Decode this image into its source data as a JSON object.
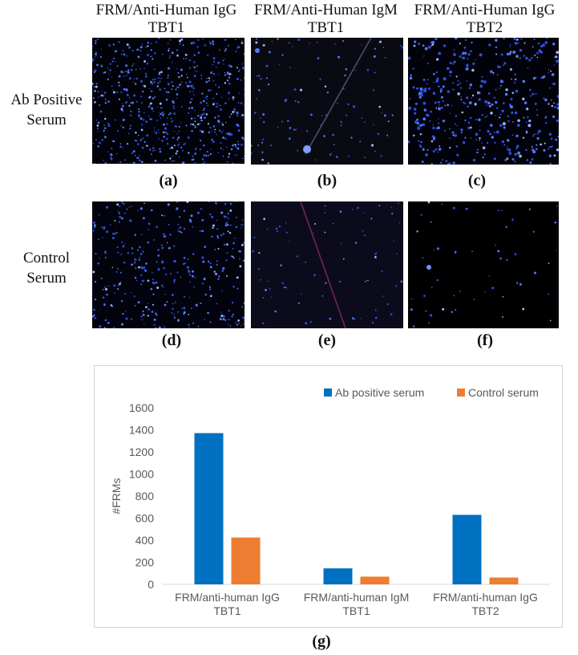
{
  "columns": [
    {
      "line1": "FRM/Anti-Human IgG",
      "line2": "TBT1"
    },
    {
      "line1": "FRM/Anti-Human IgM",
      "line2": "TBT1"
    },
    {
      "line1": "FRM/Anti-Human IgG",
      "line2": "TBT2"
    }
  ],
  "rows": [
    {
      "line1": "Ab Positive",
      "line2": "Serum"
    },
    {
      "line1": "Control",
      "line2": "Serum"
    }
  ],
  "panel_captions": [
    "(a)",
    "(b)",
    "(c)",
    "(d)",
    "(e)",
    "(f)"
  ],
  "chart_caption": "(g)",
  "colors": {
    "ab_positive": "#0070C0",
    "control": "#ED7D31",
    "dot": "#3a66ff"
  },
  "chart_data": {
    "type": "bar",
    "categories": [
      [
        "FRM/anti-human IgG",
        "TBT1"
      ],
      [
        "FRM/anti-human IgM",
        "TBT1"
      ],
      [
        "FRM/anti-human IgG",
        "TBT2"
      ]
    ],
    "series": [
      {
        "name": "Ab positive serum",
        "values": [
          1370,
          145,
          630
        ]
      },
      {
        "name": "Control serum",
        "values": [
          425,
          70,
          62
        ]
      }
    ],
    "ylabel": "#FRMs",
    "ylim": [
      0,
      1600
    ],
    "yticks": [
      "0",
      "200",
      "400",
      "600",
      "800",
      "1000",
      "1200",
      "1400",
      "1600"
    ],
    "grid": false,
    "legend": "top-right"
  }
}
